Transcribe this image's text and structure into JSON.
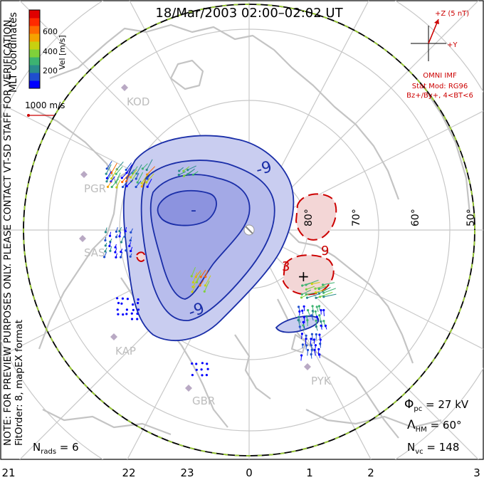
{
  "header": {
    "title": "18/Mar/2003 02:00–02:02 UT"
  },
  "side_text": {
    "right_top": "MLT coordinates",
    "left_note": "NOTE: FOR PREVIEW PURPOSES ONLY. PLEASE CONTACT VT-SD STAFF FOR VERIFICATION.",
    "left_bottom": "FitOrder: 8, mapEX format"
  },
  "colorbar": {
    "label": "Vel [m/s]",
    "ticks": [
      "600",
      "400",
      "200"
    ],
    "colors": [
      "#0000ff",
      "#1f4ecf",
      "#2a8c8c",
      "#3cb371",
      "#7fd13a",
      "#c8d010",
      "#f5a300",
      "#ff6a00",
      "#ff2a00",
      "#e00000"
    ]
  },
  "scale_vector": {
    "label": "1000 m/s"
  },
  "imf": {
    "z_label": "+Z (5 nT)",
    "y_label": "+Y",
    "source": "OMNI IMF",
    "stat_mod": "Stat Mod: RG96",
    "bin": "Bz+/By+, 4<BT<6"
  },
  "latitudes": [
    "80°",
    "70°",
    "60°",
    "50°"
  ],
  "stations": [
    "KOD",
    "PGR",
    "SAS",
    "KAP",
    "GBR",
    "PYK"
  ],
  "contour_labels": [
    "-9",
    "-9",
    "-",
    "9",
    "3",
    "+"
  ],
  "stats": {
    "phi_symbol": "Φ",
    "phi_sub": "pc",
    "phi_value": " = 27 kV",
    "lambda_symbol": "Λ",
    "lambda_sub": "HM",
    "lambda_value": " = 60°",
    "nvc_symbol": "N",
    "nvc_sub": "vc",
    "nvc_value": " = 148",
    "nrads_symbol": "N",
    "nrads_sub": "rads",
    "nrads_value": " = 6"
  },
  "mlt_axis": [
    "21",
    "22",
    "23",
    "0",
    "1",
    "2",
    "3"
  ],
  "colors": {
    "negative_fill": "#c9cdf0",
    "negative_line": "#1a2ea8",
    "positive_fill": "#f3d6d6",
    "positive_line": "#cc0000",
    "coast": "#c4c4c4",
    "grid": "#c8c8c8",
    "boundary_dash": "#9acd32"
  }
}
